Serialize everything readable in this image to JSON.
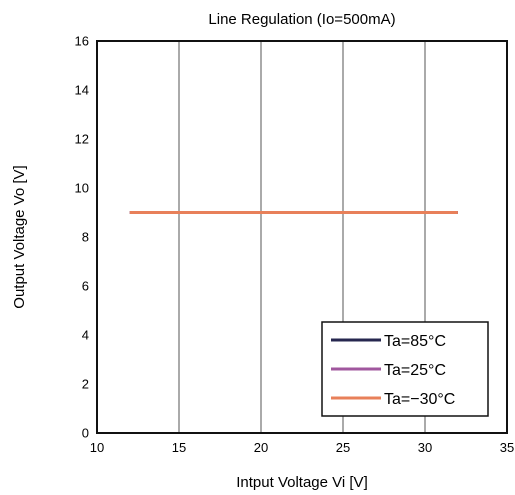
{
  "chart_data": {
    "type": "line",
    "title": "Line Regulation (Io=500mA)",
    "xlabel": "Intput Voltage Vi [V]",
    "ylabel": "Output Voltage Vo [V]",
    "xlim": [
      10,
      35
    ],
    "ylim": [
      0,
      16
    ],
    "xticks": [
      10,
      15,
      20,
      25,
      30,
      35
    ],
    "yticks": [
      0,
      2,
      4,
      6,
      8,
      10,
      12,
      14,
      16
    ],
    "grid": "vertical",
    "legend": "bottom-right",
    "series": [
      {
        "name": "Ta=85°C",
        "color": "#26274f",
        "x": [
          12,
          32
        ],
        "y": [
          9.0,
          9.0
        ]
      },
      {
        "name": "Ta=25°C",
        "color": "#a0579e",
        "x": [
          12,
          32
        ],
        "y": [
          9.0,
          9.0
        ]
      },
      {
        "name": "Ta=−30°C",
        "color": "#e8805a",
        "x": [
          12,
          32
        ],
        "y": [
          9.0,
          9.0
        ]
      }
    ]
  }
}
